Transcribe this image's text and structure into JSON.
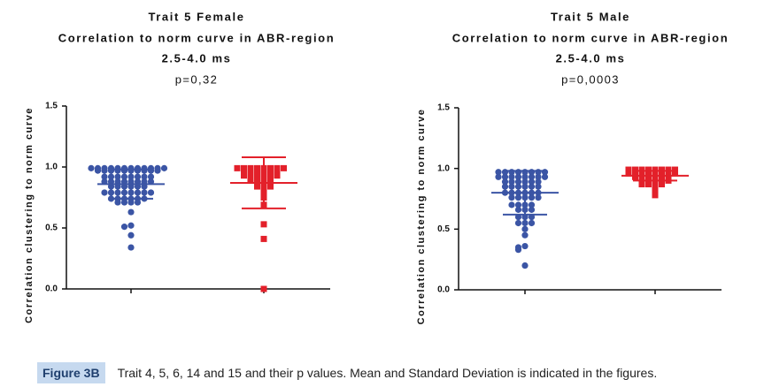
{
  "chart_data": [
    {
      "type": "scatter",
      "title": "Trait 5 Female",
      "subtitle": [
        "Correlation to norm curve in ABR-region",
        "2.5-4.0 ms"
      ],
      "annotation": "p=0,32",
      "y_label": "Correlation clustering to norm curve",
      "categories": [
        null,
        null
      ],
      "ylim": [
        0,
        1.5
      ],
      "yticks": [
        {
          "value": 0,
          "label": "0.0"
        },
        0.5,
        {
          "value": 1,
          "label": "1.0"
        },
        1.5
      ],
      "series": [
        {
          "color": "#3b55a5",
          "marker": "circle",
          "category": 0,
          "mean": 0.86,
          "sd": 0.12,
          "values": [
            0.99,
            0.99,
            0.99,
            0.99,
            0.99,
            0.99,
            0.99,
            0.99,
            0.99,
            0.99,
            0.99,
            0.99,
            0.97,
            0.97,
            0.97,
            0.97,
            0.97,
            0.97,
            0.97,
            0.97,
            0.97,
            0.97,
            0.92,
            0.92,
            0.92,
            0.92,
            0.92,
            0.92,
            0.92,
            0.92,
            0.88,
            0.88,
            0.88,
            0.88,
            0.88,
            0.88,
            0.88,
            0.88,
            0.84,
            0.84,
            0.84,
            0.84,
            0.84,
            0.84,
            0.79,
            0.79,
            0.79,
            0.79,
            0.79,
            0.79,
            0.79,
            0.79,
            0.74,
            0.74,
            0.74,
            0.74,
            0.74,
            0.74,
            0.71,
            0.71,
            0.71,
            0.71,
            0.63,
            0.52,
            0.51,
            0.44,
            0.34
          ]
        },
        {
          "color": "#e3202a",
          "marker": "square",
          "category": 1,
          "mean": 0.87,
          "sd": 0.21,
          "values": [
            0.99,
            0.99,
            0.99,
            0.99,
            0.99,
            0.99,
            0.99,
            0.99,
            0.97,
            0.97,
            0.97,
            0.97,
            0.97,
            0.97,
            0.93,
            0.93,
            0.93,
            0.93,
            0.93,
            0.93,
            0.9,
            0.9,
            0.9,
            0.9,
            0.84,
            0.84,
            0.84,
            0.8,
            0.75,
            0.69,
            0.53,
            0.41,
            0.0
          ]
        }
      ]
    },
    {
      "type": "scatter",
      "title": "Trait 5 Male",
      "subtitle": [
        "Correlation to norm curve in ABR-region",
        "2.5-4.0 ms"
      ],
      "annotation": "p=0,0003",
      "y_label": "Correlation clustering to norm curve",
      "categories": [
        null,
        null
      ],
      "ylim": [
        0,
        1.5
      ],
      "yticks": [
        {
          "value": 0,
          "label": "0.0"
        },
        0.5,
        {
          "value": 1,
          "label": "1.0"
        },
        1.5
      ],
      "series": [
        {
          "color": "#3b55a5",
          "marker": "circle",
          "category": 0,
          "mean": 0.8,
          "sd": 0.18,
          "values": [
            0.97,
            0.97,
            0.97,
            0.97,
            0.97,
            0.97,
            0.97,
            0.97,
            0.93,
            0.93,
            0.93,
            0.93,
            0.93,
            0.93,
            0.93,
            0.93,
            0.89,
            0.89,
            0.89,
            0.89,
            0.89,
            0.89,
            0.85,
            0.85,
            0.85,
            0.85,
            0.85,
            0.85,
            0.8,
            0.8,
            0.8,
            0.8,
            0.8,
            0.8,
            0.76,
            0.76,
            0.76,
            0.76,
            0.76,
            0.7,
            0.7,
            0.7,
            0.7,
            0.66,
            0.66,
            0.66,
            0.6,
            0.6,
            0.6,
            0.55,
            0.55,
            0.55,
            0.5,
            0.45,
            0.36,
            0.35,
            0.33,
            0.2
          ]
        },
        {
          "color": "#e3202a",
          "marker": "square",
          "category": 1,
          "mean": 0.94,
          "sd": 0.04,
          "values": [
            0.99,
            0.99,
            0.99,
            0.99,
            0.99,
            0.99,
            0.99,
            0.99,
            0.96,
            0.96,
            0.96,
            0.96,
            0.96,
            0.96,
            0.96,
            0.96,
            0.93,
            0.93,
            0.93,
            0.93,
            0.93,
            0.93,
            0.9,
            0.9,
            0.9,
            0.9,
            0.9,
            0.87,
            0.87,
            0.87,
            0.87,
            0.82,
            0.78
          ]
        }
      ]
    }
  ],
  "caption": {
    "label": "Figure 3B",
    "text": "Trait 4, 5, 6, 14 and 15 and their p values. Mean and Standard Deviation is indicated in the figures."
  }
}
